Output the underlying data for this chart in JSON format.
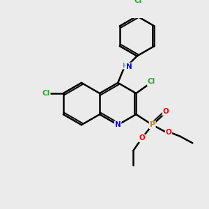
{
  "background_color": "#ebebeb",
  "bond_color": "#000000",
  "bond_width": 1.8,
  "atom_colors": {
    "C": "#000000",
    "H": "#4a9ab5",
    "N": "#0000ff",
    "O": "#ff0000",
    "P": "#cc8800",
    "Cl": "#22aa22"
  },
  "figsize": [
    3.0,
    3.0
  ],
  "dpi": 100,
  "xlim": [
    0,
    10
  ],
  "ylim": [
    0,
    10
  ]
}
